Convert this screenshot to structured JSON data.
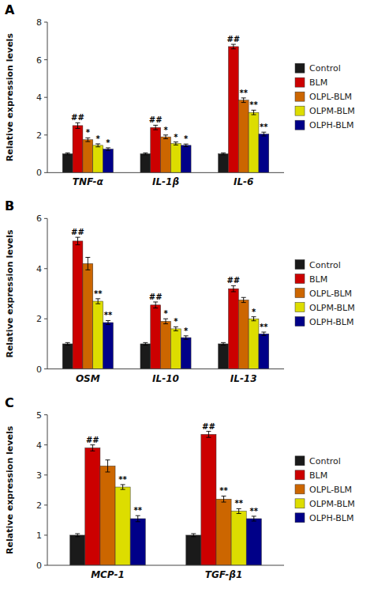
{
  "chart_data": [
    {
      "type": "bar",
      "title": "A",
      "y_label": "Relative expression levels",
      "categories": [
        "TNF-α",
        "IL-1β",
        "IL-6"
      ],
      "series": [
        {
          "name": "Control",
          "color": "#1a1a1a",
          "values": [
            1.0,
            1.0,
            1.0
          ],
          "errors": [
            0.05,
            0.05,
            0.05
          ]
        },
        {
          "name": "BLM",
          "color": "#cc0000",
          "values": [
            2.5,
            2.4,
            6.7
          ],
          "errors": [
            0.15,
            0.12,
            0.12
          ]
        },
        {
          "name": "OLPL-BLM",
          "color": "#cc6600",
          "values": [
            1.75,
            1.9,
            3.85
          ],
          "errors": [
            0.1,
            0.1,
            0.12
          ]
        },
        {
          "name": "OLPM-BLM",
          "color": "#dddd00",
          "values": [
            1.45,
            1.55,
            3.2
          ],
          "errors": [
            0.08,
            0.08,
            0.12
          ]
        },
        {
          "name": "OLPH-BLM",
          "color": "#000088",
          "values": [
            1.25,
            1.45,
            2.05
          ],
          "errors": [
            0.07,
            0.07,
            0.1
          ]
        }
      ],
      "ylim": [
        0,
        8
      ],
      "yticks": [
        0,
        2,
        4,
        6,
        8
      ],
      "grid": false,
      "legend": "right",
      "annotations": [
        {
          "text": "##",
          "category": "TNF-α",
          "series": "BLM"
        },
        {
          "text": "##",
          "category": "IL-1β",
          "series": "BLM"
        },
        {
          "text": "##",
          "category": "IL-6",
          "series": "BLM"
        },
        {
          "text": "*",
          "category": "TNF-α",
          "series": "OLPL-BLM"
        },
        {
          "text": "*",
          "category": "TNF-α",
          "series": "OLPM-BLM"
        },
        {
          "text": "*",
          "category": "TNF-α",
          "series": "OLPH-BLM"
        },
        {
          "text": "*",
          "category": "IL-1β",
          "series": "OLPL-BLM"
        },
        {
          "text": "*",
          "category": "IL-1β",
          "series": "OLPM-BLM"
        },
        {
          "text": "*",
          "category": "IL-1β",
          "series": "OLPH-BLM"
        },
        {
          "text": "**",
          "category": "IL-6",
          "series": "OLPL-BLM"
        },
        {
          "text": "**",
          "category": "IL-6",
          "series": "OLPM-BLM"
        },
        {
          "text": "**",
          "category": "IL-6",
          "series": "OLPH-BLM"
        }
      ]
    },
    {
      "type": "bar",
      "title": "B",
      "y_label": "Relative expression levels",
      "categories": [
        "OSM",
        "IL-10",
        "IL-13"
      ],
      "series": [
        {
          "name": "Control",
          "color": "#1a1a1a",
          "values": [
            1.0,
            1.0,
            1.0
          ],
          "errors": [
            0.05,
            0.05,
            0.05
          ]
        },
        {
          "name": "BLM",
          "color": "#cc0000",
          "values": [
            5.1,
            2.55,
            3.2
          ],
          "errors": [
            0.15,
            0.12,
            0.12
          ]
        },
        {
          "name": "OLPL-BLM",
          "color": "#cc6600",
          "values": [
            4.2,
            1.9,
            2.75
          ],
          "errors": [
            0.25,
            0.1,
            0.1
          ]
        },
        {
          "name": "OLPM-BLM",
          "color": "#dddd00",
          "values": [
            2.7,
            1.6,
            2.0
          ],
          "errors": [
            0.1,
            0.08,
            0.08
          ]
        },
        {
          "name": "OLPH-BLM",
          "color": "#000088",
          "values": [
            1.85,
            1.25,
            1.4
          ],
          "errors": [
            0.08,
            0.07,
            0.07
          ]
        }
      ],
      "ylim": [
        0,
        6
      ],
      "yticks": [
        0,
        2,
        4,
        6
      ],
      "grid": false,
      "legend": "right",
      "annotations": [
        {
          "text": "##",
          "category": "OSM",
          "series": "BLM"
        },
        {
          "text": "##",
          "category": "IL-10",
          "series": "BLM"
        },
        {
          "text": "##",
          "category": "IL-13",
          "series": "BLM"
        },
        {
          "text": "**",
          "category": "OSM",
          "series": "OLPM-BLM"
        },
        {
          "text": "**",
          "category": "OSM",
          "series": "OLPH-BLM"
        },
        {
          "text": "*",
          "category": "IL-10",
          "series": "OLPL-BLM"
        },
        {
          "text": "*",
          "category": "IL-10",
          "series": "OLPM-BLM"
        },
        {
          "text": "*",
          "category": "IL-10",
          "series": "OLPH-BLM"
        },
        {
          "text": "*",
          "category": "IL-13",
          "series": "OLPM-BLM"
        },
        {
          "text": "**",
          "category": "IL-13",
          "series": "OLPH-BLM"
        }
      ]
    },
    {
      "type": "bar",
      "title": "C",
      "y_label": "Relative expression levels",
      "categories": [
        "MCP-1",
        "TGF-β1"
      ],
      "series": [
        {
          "name": "Control",
          "color": "#1a1a1a",
          "values": [
            1.0,
            1.0
          ],
          "errors": [
            0.05,
            0.05
          ]
        },
        {
          "name": "BLM",
          "color": "#cc0000",
          "values": [
            3.9,
            4.35
          ],
          "errors": [
            0.1,
            0.1
          ]
        },
        {
          "name": "OLPL-BLM",
          "color": "#cc6600",
          "values": [
            3.3,
            2.2
          ],
          "errors": [
            0.2,
            0.1
          ]
        },
        {
          "name": "OLPM-BLM",
          "color": "#dddd00",
          "values": [
            2.6,
            1.8
          ],
          "errors": [
            0.08,
            0.08
          ]
        },
        {
          "name": "OLPH-BLM",
          "color": "#000088",
          "values": [
            1.55,
            1.55
          ],
          "errors": [
            0.1,
            0.08
          ]
        }
      ],
      "ylim": [
        0,
        5
      ],
      "yticks": [
        0,
        1,
        2,
        3,
        4,
        5
      ],
      "grid": false,
      "legend": "right",
      "annotations": [
        {
          "text": "##",
          "category": "MCP-1",
          "series": "BLM"
        },
        {
          "text": "##",
          "category": "TGF-β1",
          "series": "BLM"
        },
        {
          "text": "**",
          "category": "MCP-1",
          "series": "OLPM-BLM"
        },
        {
          "text": "**",
          "category": "MCP-1",
          "series": "OLPH-BLM"
        },
        {
          "text": "**",
          "category": "TGF-β1",
          "series": "OLPL-BLM"
        },
        {
          "text": "**",
          "category": "TGF-β1",
          "series": "OLPM-BLM"
        },
        {
          "text": "**",
          "category": "TGF-β1",
          "series": "OLPH-BLM"
        }
      ]
    }
  ]
}
